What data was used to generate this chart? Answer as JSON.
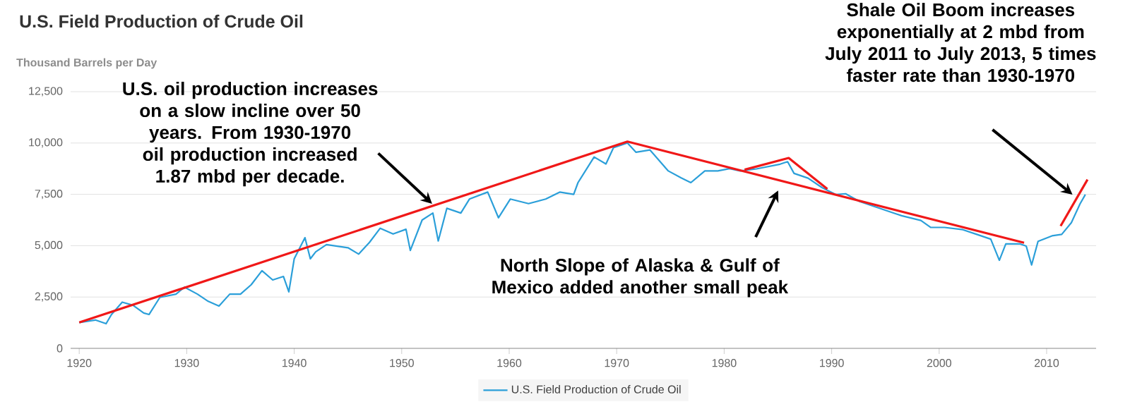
{
  "chart_data": {
    "type": "line",
    "title": "U.S. Field Production of Crude Oil",
    "ylabel": "Thousand Barrels per Day",
    "xlim": [
      1919.2,
      2014.6
    ],
    "ylim": [
      0,
      12500
    ],
    "xticks": [
      1920,
      1930,
      1940,
      1950,
      1960,
      1970,
      1980,
      1990,
      2000,
      2010
    ],
    "yticks": [
      0,
      {
        "value": 2500,
        "label": "2,500"
      },
      {
        "value": 5000,
        "label": "5,000"
      },
      {
        "value": 7500,
        "label": "7,500"
      },
      {
        "value": 10000,
        "label": "10,000"
      },
      {
        "value": 12500,
        "label": "12,500"
      }
    ],
    "grid": "y",
    "legend": "bottom",
    "marker": "none",
    "series": [
      {
        "name": "U.S. Field Production of Crude Oil",
        "color": "#2b9fd9",
        "x": [
          1920,
          1921.5,
          1922.5,
          1923,
          1924,
          1925,
          1926,
          1926.5,
          1927.5,
          1929,
          1929.8,
          1931,
          1932,
          1933,
          1934,
          1935,
          1936,
          1937,
          1938,
          1939,
          1939.5,
          1940,
          1941,
          1941.5,
          1942,
          1943,
          1945,
          1946,
          1947,
          1948,
          1949.2,
          1950.4,
          1950.8,
          1951.9,
          1952.9,
          1953.4,
          1954.2,
          1955.5,
          1956.3,
          1958,
          1959,
          1960.1,
          1961.8,
          1963.4,
          1964.7,
          1966,
          1966.4,
          1967.9,
          1969,
          1969.7,
          1971,
          1971.8,
          1973.1,
          1974.8,
          1976,
          1976.9,
          1978.2,
          1979.4,
          1980.5,
          1981.5,
          1983,
          1985.2,
          1985.9,
          1986.5,
          1987.8,
          1989.1,
          1990.4,
          1991.3,
          1992.6,
          1993.9,
          1995.2,
          1996.5,
          1998.3,
          1999.2,
          2000.5,
          2002.2,
          2003.5,
          2004.8,
          2005.6,
          2006.2,
          2007.5,
          2008.1,
          2008.6,
          2009.2,
          2010.5,
          2011.4,
          2012.3,
          2013.1,
          2013.6
        ],
        "values": [
          1260,
          1380,
          1200,
          1650,
          2250,
          2100,
          1720,
          1650,
          2480,
          2640,
          2980,
          2640,
          2290,
          2060,
          2640,
          2640,
          3100,
          3780,
          3330,
          3500,
          2750,
          4360,
          5390,
          4360,
          4700,
          5050,
          4900,
          4590,
          5160,
          5850,
          5570,
          5800,
          4770,
          6250,
          6590,
          5230,
          6820,
          6590,
          7270,
          7610,
          6360,
          7270,
          7050,
          7270,
          7610,
          7500,
          8070,
          9320,
          8980,
          9770,
          10000,
          9550,
          9660,
          8640,
          8300,
          8070,
          8640,
          8640,
          8750,
          8640,
          8740,
          8970,
          9090,
          8520,
          8290,
          7830,
          7490,
          7530,
          7150,
          6920,
          6690,
          6460,
          6230,
          5890,
          5890,
          5780,
          5550,
          5320,
          4290,
          5090,
          5090,
          4980,
          4060,
          5210,
          5480,
          5550,
          6120,
          7030,
          7490
        ]
      },
      {
        "type": "line",
        "color": "#f01818",
        "x": [
          1920,
          1971,
          2007.9
        ],
        "values": [
          1260,
          10070,
          5140
        ]
      },
      {
        "type": "line",
        "color": "#f01818",
        "x": [
          1981.9,
          1986,
          1989.6
        ],
        "values": [
          8700,
          9270,
          7760
        ]
      },
      {
        "type": "line",
        "color": "#f01818",
        "x": [
          2011.3,
          2013.8
        ],
        "values": [
          5960,
          8220
        ]
      }
    ],
    "annotations": [
      {
        "text": "U.S. oil production increases on a slow incline over 50 years.  From 1930-1970 oil production increased 1.87 mbd per decade.",
        "x": 1952.7,
        "y": 6900
      },
      "North Slope of Alaska & Gulf of Mexico added another small peak",
      "Shale Oil Boom increases exponentially at 2 mbd from July 2011 to July 2013, 5 times faster rate than 1930-1970"
    ]
  }
}
